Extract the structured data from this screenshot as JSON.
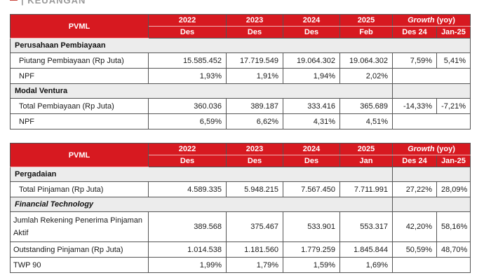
{
  "brand": {
    "text": "| KEUANGAN"
  },
  "colors": {
    "header_red": "#d71920",
    "section_gray": "#ececec"
  },
  "table1": {
    "header": {
      "pvml": "PVML",
      "years": [
        "2022",
        "2023",
        "2024",
        "2025"
      ],
      "months": [
        "Des",
        "Des",
        "Des",
        "Feb"
      ],
      "growth_label": "Growth",
      "growth_unit": " (yoy)",
      "growth_cols": [
        "Des 24",
        "Jan-25"
      ]
    },
    "sections": [
      {
        "title": "Perusahaan Pembiayaan",
        "rows": [
          {
            "label": "Piutang Pembiayaan (Rp Juta)",
            "values": [
              "15.585.452",
              "17.719.549",
              "19.064.302",
              "19.064.302"
            ],
            "growth": [
              "7,59%",
              "5,41%"
            ]
          },
          {
            "label": "NPF",
            "values": [
              "1,93%",
              "1,91%",
              "1,94%",
              "2,02%"
            ],
            "growth": [
              "",
              ""
            ]
          }
        ]
      },
      {
        "title": "Modal Ventura",
        "rows": [
          {
            "label": "Total Pembiayaan (Rp Juta)",
            "values": [
              "360.036",
              "389.187",
              "333.416",
              "365.689"
            ],
            "growth": [
              "-14,33%",
              "-7,21%"
            ]
          },
          {
            "label": "NPF",
            "values": [
              "6,59%",
              "6,62%",
              "4,31%",
              "4,51%"
            ],
            "growth": [
              "",
              ""
            ]
          }
        ]
      }
    ]
  },
  "table2": {
    "header": {
      "pvml": "PVML",
      "years": [
        "2022",
        "2023",
        "2024",
        "2025"
      ],
      "months": [
        "Des",
        "Des",
        "Des",
        "Jan"
      ],
      "growth_label": "Growth",
      "growth_unit": " (yoy)",
      "growth_cols": [
        "Des 24",
        "Jan-25"
      ]
    },
    "sections": [
      {
        "title": "Pergadaian",
        "rows": [
          {
            "label": "Total Pinjaman (Rp Juta)",
            "values": [
              "4.589.335",
              "5.948.215",
              "7.567.450",
              "7.711.991"
            ],
            "growth": [
              "27,22%",
              "28,09%"
            ]
          }
        ]
      },
      {
        "title": "Financial Technology",
        "rows": [
          {
            "label_line1": "Jumlah Rekening Penerima Pinjaman",
            "label_line2": "Aktif",
            "values": [
              "389.568",
              "375.467",
              "533.901",
              "553.317"
            ],
            "growth": [
              "42,20%",
              "58,16%"
            ]
          },
          {
            "label": "Outstanding Pinjaman (Rp Juta)",
            "values": [
              "1.014.538",
              "1.181.560",
              "1.779.259",
              "1.845.844"
            ],
            "growth": [
              "50,59%",
              "48,70%"
            ]
          },
          {
            "label": "TWP 90",
            "values": [
              "1,99%",
              "1,79%",
              "1,59%",
              "1,69%"
            ],
            "growth": [
              "",
              ""
            ]
          }
        ]
      }
    ]
  }
}
